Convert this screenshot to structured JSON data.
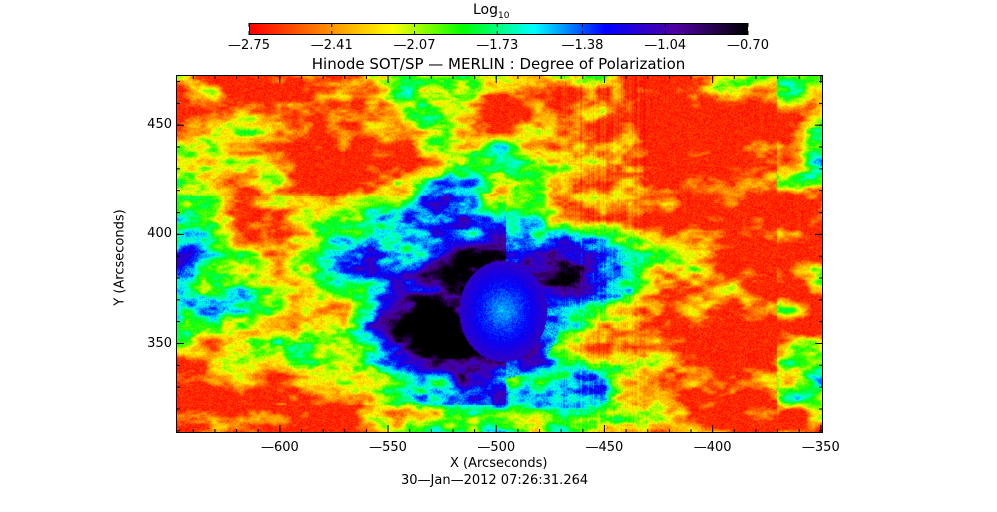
{
  "chart_data": {
    "type": "heatmap",
    "title": "Hinode SOT/SP — MERLIN : Degree of Polarization",
    "xlabel": "X (Arcseconds)",
    "ylabel": "Y (Arcseconds)",
    "timestamp": "30—Jan—2012 07:26:31.264",
    "xlim": [
      -648,
      -349
    ],
    "ylim": [
      309,
      473
    ],
    "xticks": [
      -600,
      -550,
      -500,
      -450,
      -400,
      -350
    ],
    "xtick_labels": [
      "—600",
      "—550",
      "—500",
      "—450",
      "—400",
      "—350"
    ],
    "yticks": [
      350,
      400,
      450
    ],
    "ytick_labels": [
      "350",
      "400",
      "450"
    ],
    "colorbar": {
      "label": "Log",
      "label_sub": "10",
      "range": [
        -2.75,
        -0.7
      ],
      "tick_values": [
        -2.75,
        -2.41,
        -2.07,
        -1.73,
        -1.38,
        -1.04,
        -0.7
      ],
      "tick_labels": [
        "—2.75",
        "—2.41",
        "—2.07",
        "—1.73",
        "—1.38",
        "—1.04",
        "—0.70"
      ],
      "colors": [
        "#ff0000",
        "#ff8000",
        "#ffff00",
        "#00ff00",
        "#00ffff",
        "#0000ff",
        "#5000a0",
        "#000000"
      ]
    },
    "features": {
      "sunspot_center": [
        -497,
        365
      ],
      "sunspot_peak_log10": -0.8,
      "background_log10": -2.65
    }
  }
}
